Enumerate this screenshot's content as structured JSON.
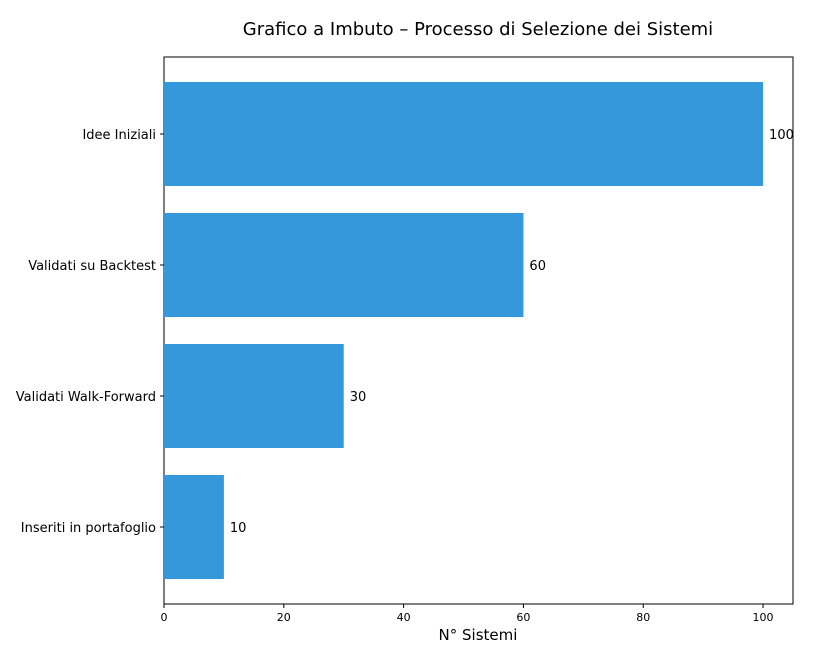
{
  "chart_data": {
    "type": "bar",
    "orientation": "horizontal",
    "title": "Grafico a Imbuto – Processo di Selezione dei Sistemi",
    "xlabel": "N° Sistemi",
    "ylabel": "",
    "categories": [
      "Idee Iniziali",
      "Validati su Backtest",
      "Validati Walk-Forward",
      "Inseriti in portafoglio"
    ],
    "values": [
      100,
      60,
      30,
      10
    ],
    "data_labels": [
      "100",
      "60",
      "30",
      "10"
    ],
    "xlim": [
      0,
      105
    ],
    "xticks": [
      0,
      20,
      40,
      60,
      80,
      100
    ],
    "xtick_labels": [
      "0",
      "20",
      "40",
      "60",
      "80",
      "100"
    ],
    "bar_color": "#3498db",
    "grid": false,
    "legend": "none"
  }
}
